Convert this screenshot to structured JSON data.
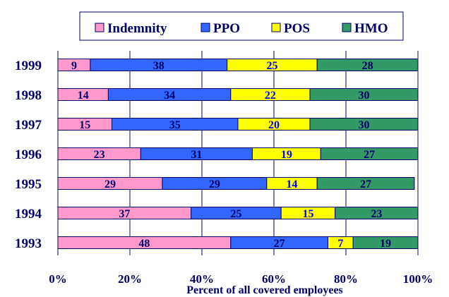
{
  "chart_data": {
    "type": "bar",
    "orientation": "horizontal",
    "stacked": true,
    "categories": [
      "1999",
      "1998",
      "1997",
      "1996",
      "1995",
      "1994",
      "1993"
    ],
    "series": [
      {
        "name": "Indemnity",
        "color": "#ff99cc",
        "label_color": "#000066",
        "values": [
          9,
          14,
          15,
          23,
          29,
          37,
          48
        ]
      },
      {
        "name": "PPO",
        "color": "#3366ff",
        "label_color": "#000066",
        "values": [
          38,
          34,
          35,
          31,
          29,
          25,
          27
        ]
      },
      {
        "name": "POS",
        "color": "#ffff00",
        "label_color": "#0000ff",
        "values": [
          25,
          22,
          20,
          19,
          14,
          15,
          7
        ]
      },
      {
        "name": "HMO",
        "color": "#339966",
        "label_color": "#000066",
        "values": [
          28,
          30,
          30,
          27,
          27,
          23,
          19
        ]
      }
    ],
    "xlabel": "Percent of all covered employees",
    "ylabel": "",
    "xlim": [
      0,
      100
    ],
    "xticks": [
      "0%",
      "20%",
      "40%",
      "60%",
      "80%",
      "100%"
    ],
    "legend_position": "top",
    "text_color": "#000066"
  }
}
